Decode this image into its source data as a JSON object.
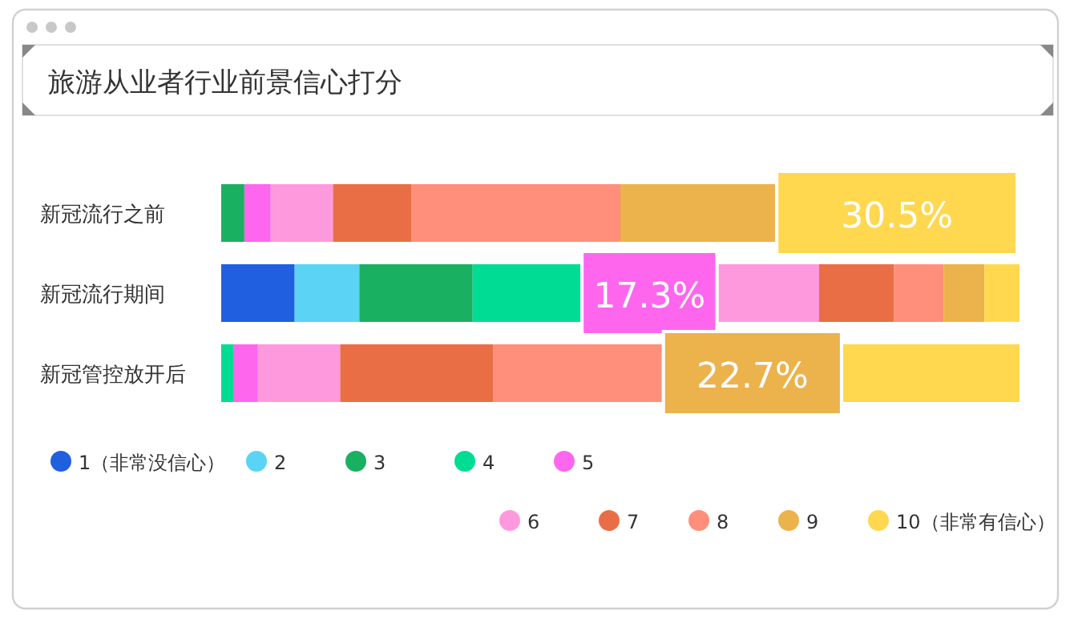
{
  "chart_data": {
    "type": "bar",
    "orientation": "horizontal",
    "stacked": true,
    "legend": "bottom",
    "title": "旅游从业者行业前景信心打分",
    "categories": [
      "新冠流行之前",
      "新冠流行期间",
      "新冠管控放开后"
    ],
    "series": [
      {
        "name": "1（非常没信心）",
        "color": "#1f5fe0",
        "values": [
          0,
          9.2,
          0
        ]
      },
      {
        "name": "2",
        "color": "#5bd3f5",
        "values": [
          0,
          8.1,
          0
        ]
      },
      {
        "name": "3",
        "color": "#1ab061",
        "values": [
          2.9,
          14.2,
          0
        ]
      },
      {
        "name": "4",
        "color": "#00dc93",
        "values": [
          0,
          13.5,
          1.5
        ]
      },
      {
        "name": "5",
        "color": "#ff66ee",
        "values": [
          3.3,
          17.3,
          3.1
        ],
        "value_labels": [
          null,
          "17.3%",
          null
        ]
      },
      {
        "name": "6",
        "color": "#ff99dd",
        "values": [
          7.8,
          12.6,
          10.3
        ]
      },
      {
        "name": "7",
        "color": "#ea6e45",
        "values": [
          9.8,
          9.4,
          19.2
        ]
      },
      {
        "name": "8",
        "color": "#ff8f7a",
        "values": [
          26.2,
          6.2,
          21.1
        ]
      },
      {
        "name": "9",
        "color": "#ecb24c",
        "values": [
          19.4,
          5.1,
          22.7
        ],
        "value_labels": [
          null,
          null,
          "22.7%"
        ]
      },
      {
        "name": "10（非常有信心）",
        "color": "#ffd84f",
        "values": [
          30.5,
          4.4,
          22.1
        ],
        "value_labels": [
          "30.5%",
          null,
          null
        ]
      }
    ]
  }
}
